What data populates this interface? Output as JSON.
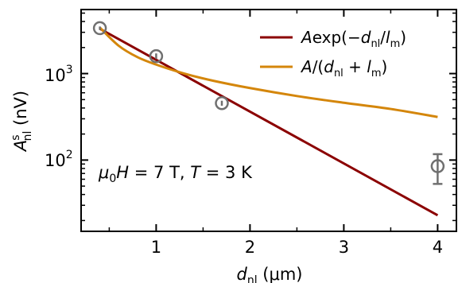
{
  "chart_data": {
    "type": "scatter",
    "x_scale": "linear",
    "y_scale": "log",
    "xlim": [
      0.2,
      4.2
    ],
    "ylim": [
      15,
      5500
    ],
    "x_ticks": [
      1,
      2,
      3,
      4
    ],
    "x_tick_labels": [
      "1",
      "2",
      "3",
      "4"
    ],
    "y_ticks": [
      100,
      1000
    ],
    "y_tick_labels": [
      {
        "base": "10",
        "exp": "2"
      },
      {
        "base": "10",
        "exp": "3"
      }
    ],
    "xlabel": {
      "main": "d",
      "sub": "nl",
      "unit": " (μm)"
    },
    "ylabel": {
      "main": "A",
      "sup": "s",
      "sub": "nl",
      "unit": " (nV)"
    },
    "annotation": "μ0H = 7 T, T = 3 K",
    "points": [
      {
        "x": 0.4,
        "y": 3350,
        "err": 150
      },
      {
        "x": 1.0,
        "y": 1590,
        "err": 120
      },
      {
        "x": 1.7,
        "y": 455,
        "err": 30
      },
      {
        "x": 4.0,
        "y": 85,
        "err": 32
      }
    ],
    "series": [
      {
        "name": "A exp(−d_nl/l_m)",
        "color": "#8b0000",
        "type": "line",
        "x": [
          0.4,
          4.0
        ],
        "y": [
          3300,
          23
        ]
      },
      {
        "name": "A/(d_nl + l_m)",
        "color": "#d4860b",
        "type": "line",
        "x": [
          0.4,
          0.6,
          0.8,
          1.0,
          1.3,
          1.6,
          2.0,
          2.5,
          3.0,
          3.5,
          4.0
        ],
        "y": [
          3400,
          2100,
          1550,
          1270,
          1000,
          830,
          680,
          550,
          460,
          390,
          315
        ]
      }
    ],
    "marker_color": "#707070",
    "legend_position": "top-right",
    "grid": false
  }
}
